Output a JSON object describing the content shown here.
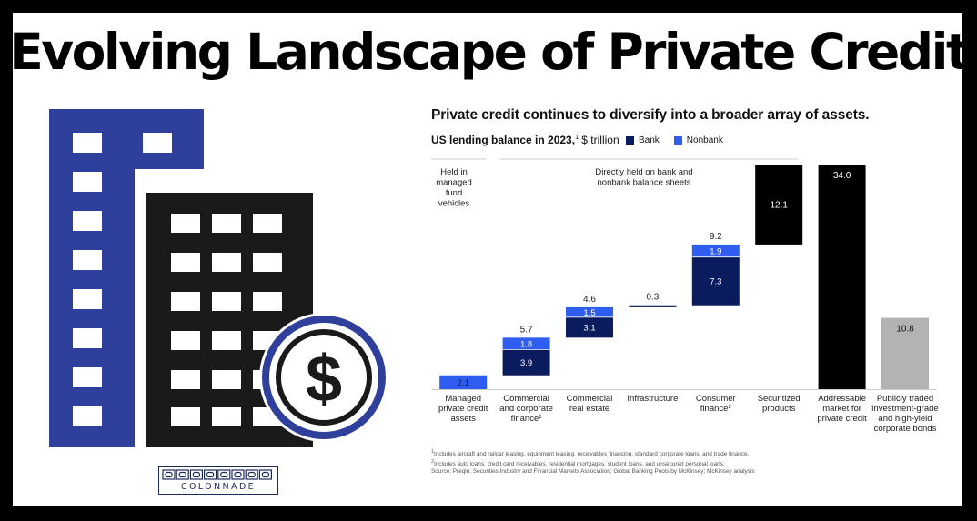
{
  "page": {
    "title": "Evolving Landscape of Private Credit",
    "brand": "COLONNADE"
  },
  "colors": {
    "bank": "#0b1c5e",
    "nonbank": "#2f5df0",
    "black": "#000000",
    "gray": "#b3b3b3",
    "building_blue": "#2e3f9c",
    "building_black": "#1a1a1a"
  },
  "icons": [
    "building-blue-icon",
    "building-black-icon",
    "dollar-coin-icon"
  ],
  "chart_data": {
    "type": "bar",
    "title": "Private credit continues to diversify into a broader array of assets.",
    "subtitle_bold": "US lending balance in 2023,",
    "subtitle_sup": "1",
    "subtitle_unit": " $ trillion",
    "legend": [
      {
        "name": "Bank",
        "color": "#0b1c5e"
      },
      {
        "name": "Nonbank",
        "color": "#2f5df0"
      }
    ],
    "legend_placement": "top",
    "grid": false,
    "ylim": [
      0,
      34.0
    ],
    "group_labels": [
      "Held in\nmanaged\nfund\nvehicles",
      "Directly held on bank and\nnonbank balance sheets"
    ],
    "categories": [
      {
        "label": "Managed\nprivate credit\nassets",
        "sup": ""
      },
      {
        "label": "Commercial\nand corporate\nfinance",
        "sup": "1"
      },
      {
        "label": "Commercial\nreal estate",
        "sup": ""
      },
      {
        "label": "Infrastructure",
        "sup": ""
      },
      {
        "label": "Consumer\nfinance",
        "sup": "2"
      },
      {
        "label": "Securitized\nproducts",
        "sup": ""
      },
      {
        "label": "Addressable\nmarket for\nprivate credit",
        "sup": ""
      },
      {
        "label": "Publicly traded\ninvestment-grade\nand high-yield\ncorporate bonds",
        "sup": ""
      }
    ],
    "bars": [
      {
        "kind": "float",
        "base": 0,
        "bank": 0,
        "nonbank": 2.1,
        "total": "",
        "bank_label": "",
        "nonbank_label": "2.1"
      },
      {
        "kind": "float",
        "base": 2.1,
        "bank": 3.9,
        "nonbank": 1.8,
        "total": "5.7",
        "bank_label": "3.9",
        "nonbank_label": "1.8"
      },
      {
        "kind": "float",
        "base": 7.8,
        "bank": 3.1,
        "nonbank": 1.5,
        "total": "4.6",
        "bank_label": "3.1",
        "nonbank_label": "1.5"
      },
      {
        "kind": "float",
        "base": 12.4,
        "bank": 0.3,
        "nonbank": 0,
        "total": "0.3",
        "bank_label": "",
        "nonbank_label": ""
      },
      {
        "kind": "float",
        "base": 12.7,
        "bank": 7.3,
        "nonbank": 1.9,
        "total": "9.2",
        "bank_label": "7.3",
        "nonbank_label": "1.9"
      },
      {
        "kind": "float_black",
        "base": 21.9,
        "value": 12.1,
        "label": "12.1"
      },
      {
        "kind": "total_black",
        "base": 0,
        "value": 34.0,
        "label": "34.0"
      },
      {
        "kind": "total_gray",
        "base": 0,
        "value": 10.8,
        "label": "10.8"
      }
    ],
    "footnotes": [
      "Includes aircraft and railcar leasing, equipment leasing, receivables financing, standard corporate loans, and trade finance.",
      "Includes auto loans, credit card receivables, residential mortgages, student loans, and unsecured personal loans."
    ],
    "footnote_marks": [
      "1",
      "2"
    ],
    "source": "Source: Preqin; Securities Industry and Financial Markets Association; Global Banking Pools by McKinsey; McKinsey analysis"
  }
}
